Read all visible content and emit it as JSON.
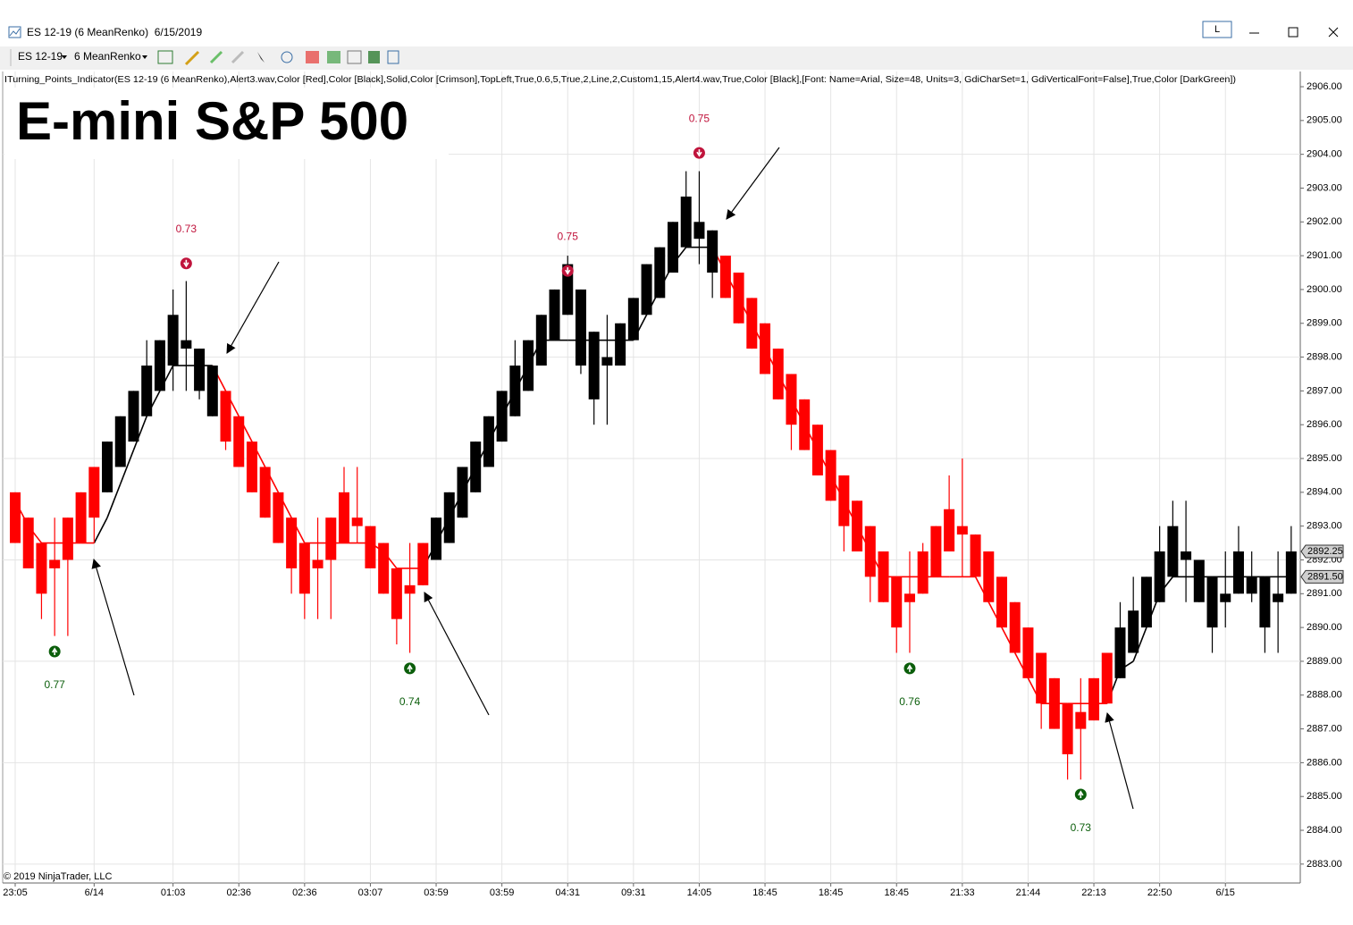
{
  "window": {
    "title": "ES 12-19 (6 MeanRenko)  6/15/2019",
    "button": "L"
  },
  "toolbar": {
    "instrument": "ES 12-19",
    "bar_type": "6 MeanRenko"
  },
  "indicator_text": "ITurning_Points_Indicator(ES 12-19 (6 MeanRenko),Alert3.wav,Color [Red],Color [Black],Solid,Color [Crimson],TopLeft,True,0.6,5,True,2,Line,2,Custom1,15,Alert4.wav,True,Color [Black],[Font: Name=Arial, Size=48, Units=3, GdiCharSet=1, GdiVerticalFont=False],True,Color [DarkGreen])",
  "copyright": "© 2019 NinjaTrader, LLC",
  "chart_data": {
    "type": "candlestick",
    "title": "E-mini S&P 500",
    "categories": [
      "23:05",
      null,
      null,
      null,
      null,
      null,
      "6/14",
      null,
      null,
      null,
      null,
      null,
      "01:03",
      null,
      null,
      null,
      null,
      "02:36",
      null,
      null,
      null,
      null,
      "02:36",
      null,
      null,
      null,
      null,
      "03:07",
      null,
      null,
      null,
      null,
      "03:59",
      null,
      null,
      null,
      null,
      "03:59",
      null,
      null,
      null,
      null,
      "04:31",
      null,
      null,
      null,
      null,
      "09:31",
      null,
      null,
      null,
      null,
      "14:05",
      null,
      null,
      null,
      null,
      "18:45",
      null,
      null,
      null,
      null,
      "18:45",
      null,
      null,
      null,
      null,
      "18:45",
      null,
      null,
      null,
      null,
      "21:33",
      null,
      null,
      null,
      null,
      "21:44",
      null,
      null,
      null,
      null,
      "22:13",
      null,
      null,
      null,
      null,
      "22:50",
      null,
      null,
      null,
      null,
      "6/15",
      null,
      null,
      null,
      null,
      null
    ],
    "open": [
      2894,
      2893.25,
      2892.5,
      2892,
      2892,
      2892.5,
      2893.25,
      2894,
      2894.75,
      2895.5,
      2896.25,
      2897,
      2897.75,
      2898.5,
      2898.25,
      2897.75,
      2897,
      2896.25,
      2895.5,
      2894.75,
      2894,
      2893.25,
      2892.5,
      2892,
      2892,
      2892.5,
      2893.25,
      2893,
      2892.5,
      2891.75,
      2891.25,
      2891.25,
      2892,
      2892.5,
      2893.25,
      2894,
      2894.75,
      2895.5,
      2896.25,
      2897,
      2897.75,
      2898.5,
      2899.25,
      2900,
      2898.75,
      2898,
      2897.75,
      2898.5,
      2899.25,
      2899.75,
      2900.5,
      2901.25,
      2902,
      2901.75,
      2901,
      2900.5,
      2899.75,
      2899,
      2898.25,
      2897.5,
      2896.75,
      2896,
      2895.25,
      2894.5,
      2893.75,
      2893,
      2892.25,
      2891.5,
      2891,
      2891,
      2891.5,
      2892.25,
      2893,
      2892.75,
      2892.25,
      2891.5,
      2890.75,
      2890,
      2889.25,
      2888.5,
      2887.75,
      2887.5,
      2887.25,
      2887.75,
      2888.5,
      2889.25,
      2890,
      2890.75,
      2891.5,
      2892.25,
      2892,
      2891.5,
      2891,
      2891,
      2891.5,
      2891.5,
      2891,
      2891
    ],
    "high": [
      2894,
      2893.25,
      2892.5,
      2893.25,
      2893.25,
      2894,
      2894.75,
      2895.5,
      2896.25,
      2897,
      2898.5,
      2898.5,
      2900,
      2900.25,
      2898.25,
      2897.75,
      2897,
      2896.25,
      2895.5,
      2894.75,
      2894,
      2893.25,
      2892.5,
      2893.25,
      2893.25,
      2894.75,
      2894.75,
      2893,
      2892.5,
      2891.75,
      2892.5,
      2892.5,
      2893.25,
      2894,
      2894.75,
      2895.5,
      2896.25,
      2897,
      2898.5,
      2898.5,
      2899.25,
      2900,
      2901,
      2900,
      2898.75,
      2899.25,
      2899,
      2899.75,
      2900.75,
      2901.25,
      2902,
      2903.5,
      2903.5,
      2901.75,
      2901,
      2900.5,
      2899.75,
      2899,
      2898.25,
      2897.5,
      2896.75,
      2896,
      2895.25,
      2894.5,
      2893.75,
      2893,
      2892.25,
      2891.5,
      2892.25,
      2892.5,
      2893,
      2894.5,
      2895,
      2892.75,
      2892.25,
      2891.5,
      2890.75,
      2890,
      2889.25,
      2888.5,
      2887.75,
      2888.5,
      2888.5,
      2889.25,
      2890.75,
      2891.5,
      2891.5,
      2893,
      2893.75,
      2893.75,
      2892,
      2891.5,
      2892.25,
      2893,
      2892.25,
      2891.5,
      2892.25,
      2893
    ],
    "low": [
      2892.5,
      2891.75,
      2890.25,
      2889.75,
      2889.75,
      2892.5,
      2892.5,
      2894,
      2894.75,
      2895.5,
      2896.25,
      2897,
      2897,
      2897,
      2896.75,
      2896.25,
      2895.25,
      2894.75,
      2894,
      2893.25,
      2892.5,
      2891,
      2890.25,
      2890.25,
      2890.25,
      2892.5,
      2892.5,
      2891.75,
      2891,
      2889.5,
      2889.25,
      2891.25,
      2892,
      2892.5,
      2893.25,
      2894,
      2894.75,
      2895.5,
      2896.25,
      2897,
      2897.75,
      2898.5,
      2899.25,
      2897.5,
      2896,
      2896,
      2897.75,
      2898.5,
      2899.25,
      2899.75,
      2900.5,
      2901.25,
      2900.75,
      2899.75,
      2899.75,
      2899,
      2898.25,
      2897.5,
      2896.75,
      2895.25,
      2895.25,
      2894.5,
      2893.75,
      2892.25,
      2892.25,
      2890.75,
      2890.75,
      2889.25,
      2889.25,
      2891,
      2891.5,
      2892.25,
      2891.5,
      2891.5,
      2890.75,
      2890,
      2889.25,
      2888.5,
      2887,
      2887,
      2885.5,
      2885.5,
      2887.25,
      2887.75,
      2888.5,
      2889.25,
      2890,
      2890.75,
      2891.5,
      2890.75,
      2890.75,
      2889.25,
      2890,
      2891,
      2890.75,
      2889.25,
      2889.25,
      2891
    ],
    "close": [
      2892.5,
      2891.75,
      2891,
      2891.75,
      2893.25,
      2894,
      2894.75,
      2895.5,
      2896.25,
      2897,
      2897.75,
      2898.5,
      2899.25,
      2898.25,
      2897,
      2896.25,
      2895.5,
      2894.75,
      2894,
      2893.25,
      2892.5,
      2891.75,
      2891,
      2891.75,
      2893.25,
      2894,
      2893,
      2891.75,
      2891,
      2890.25,
      2891,
      2892.5,
      2893.25,
      2894,
      2894.75,
      2895.5,
      2896.25,
      2897,
      2897.75,
      2898.5,
      2899.25,
      2900,
      2900.75,
      2897.75,
      2896.75,
      2897.75,
      2899,
      2899.75,
      2900.75,
      2901.25,
      2902,
      2902.75,
      2901.5,
      2900.5,
      2899.75,
      2899,
      2898.25,
      2897.5,
      2896.75,
      2896,
      2895.25,
      2894.5,
      2893.75,
      2893,
      2892.25,
      2891.5,
      2890.75,
      2890,
      2890.75,
      2892.25,
      2893,
      2893.5,
      2892.75,
      2891.5,
      2890.75,
      2890,
      2889.25,
      2888.5,
      2887.75,
      2887,
      2886.25,
      2887,
      2888.5,
      2889.25,
      2890,
      2890.5,
      2891.5,
      2892.25,
      2893,
      2892,
      2890.75,
      2890,
      2890.75,
      2892.25,
      2891,
      2890,
      2890.75,
      2892.25
    ],
    "bar_colors": [
      "#ff0000",
      "#ff0000",
      "#ff0000",
      "#ff0000",
      "#ff0000",
      "#ff0000",
      "#ff0000",
      "#000000",
      "#000000",
      "#000000",
      "#000000",
      "#000000",
      "#000000",
      "#000000",
      "#000000",
      "#000000",
      "#ff0000",
      "#ff0000",
      "#ff0000",
      "#ff0000",
      "#ff0000",
      "#ff0000",
      "#ff0000",
      "#ff0000",
      "#ff0000",
      "#ff0000",
      "#ff0000",
      "#ff0000",
      "#ff0000",
      "#ff0000",
      "#ff0000",
      "#ff0000",
      "#000000",
      "#000000",
      "#000000",
      "#000000",
      "#000000",
      "#000000",
      "#000000",
      "#000000",
      "#000000",
      "#000000",
      "#000000",
      "#000000",
      "#000000",
      "#000000",
      "#000000",
      "#000000",
      "#000000",
      "#000000",
      "#000000",
      "#000000",
      "#000000",
      "#000000",
      "#ff0000",
      "#ff0000",
      "#ff0000",
      "#ff0000",
      "#ff0000",
      "#ff0000",
      "#ff0000",
      "#ff0000",
      "#ff0000",
      "#ff0000",
      "#ff0000",
      "#ff0000",
      "#ff0000",
      "#ff0000",
      "#ff0000",
      "#ff0000",
      "#ff0000",
      "#ff0000",
      "#ff0000",
      "#ff0000",
      "#ff0000",
      "#ff0000",
      "#ff0000",
      "#ff0000",
      "#ff0000",
      "#ff0000",
      "#ff0000",
      "#ff0000",
      "#ff0000",
      "#ff0000",
      "#000000",
      "#000000",
      "#000000",
      "#000000",
      "#000000",
      "#000000",
      "#000000",
      "#000000",
      "#000000",
      "#000000",
      "#000000",
      "#000000",
      "#000000",
      "#000000"
    ],
    "trail": [
      2893.75,
      2893,
      2892.5,
      2892.5,
      2892.5,
      2892.5,
      2892.5,
      2893.25,
      2894.25,
      2895.25,
      2896.25,
      2897,
      2897.75,
      2897.75,
      2897.75,
      2897.75,
      2897,
      2896.25,
      2895.5,
      2894.75,
      2894,
      2893.25,
      2892.5,
      2892.5,
      2892.5,
      2892.5,
      2892.5,
      2892.5,
      2892.25,
      2891.75,
      2891.75,
      2891.75,
      2892.5,
      2893.25,
      2894,
      2894.75,
      2895.5,
      2896.25,
      2897,
      2897.75,
      2898.5,
      2898.5,
      2898.5,
      2898.5,
      2898.5,
      2898.5,
      2898.5,
      2898.5,
      2899.25,
      2900,
      2900.75,
      2901.25,
      2901.25,
      2901.25,
      2900.5,
      2899.75,
      2899,
      2898.25,
      2897.5,
      2896.75,
      2896,
      2895.25,
      2894.5,
      2893.75,
      2893,
      2892.25,
      2891.5,
      2891.5,
      2891.5,
      2891.5,
      2891.5,
      2891.5,
      2891.5,
      2891.5,
      2890.75,
      2890,
      2889.25,
      2888.5,
      2887.75,
      2887.75,
      2887.75,
      2887.75,
      2887.75,
      2887.75,
      2888.75,
      2889,
      2890,
      2891,
      2891.5,
      2891.5,
      2891.5,
      2891.5,
      2891.5,
      2891.5,
      2891.5,
      2891.5,
      2891.5,
      2891.5
    ],
    "sell_signals": {
      "color": "#c0143c",
      "points": [
        {
          "bar": 13,
          "price": 2900.77,
          "value": 0.73
        },
        {
          "bar": 42,
          "price": 2900.55,
          "value": 0.75
        },
        {
          "bar": 52,
          "price": 2904.04,
          "value": 0.75
        }
      ]
    },
    "buy_signals": {
      "color": "#0b5e0b",
      "points": [
        {
          "bar": 3,
          "price": 2889.29,
          "value": 0.77
        },
        {
          "bar": 30,
          "price": 2888.79,
          "value": 0.74
        },
        {
          "bar": 68,
          "price": 2888.79,
          "value": 0.76
        },
        {
          "bar": 81,
          "price": 2885.06,
          "value": 0.73
        }
      ]
    },
    "price_markers": [
      2892.25,
      {
        "value": 2891.5,
        "label": "2891.50"
      }
    ],
    "ylim": [
      2882.52,
      2906.45
    ],
    "yticks": [
      {
        "value": 2883,
        "label": "2883.00"
      },
      {
        "value": 2884,
        "label": "2884.00"
      },
      {
        "value": 2885,
        "label": "2885.00"
      },
      {
        "value": 2886,
        "label": "2886.00"
      },
      {
        "value": 2887,
        "label": "2887.00"
      },
      {
        "value": 2888,
        "label": "2888.00"
      },
      {
        "value": 2889,
        "label": "2889.00"
      },
      {
        "value": 2890,
        "label": "2890.00"
      },
      {
        "value": 2891,
        "label": "2891.00"
      },
      {
        "value": 2892,
        "label": "2892.00"
      },
      {
        "value": 2893,
        "label": "2893.00"
      },
      {
        "value": 2894,
        "label": "2894.00"
      },
      {
        "value": 2895,
        "label": "2895.00"
      },
      {
        "value": 2896,
        "label": "2896.00"
      },
      {
        "value": 2897,
        "label": "2897.00"
      },
      {
        "value": 2898,
        "label": "2898.00"
      },
      {
        "value": 2899,
        "label": "2899.00"
      },
      {
        "value": 2900,
        "label": "2900.00"
      },
      {
        "value": 2901,
        "label": "2901.00"
      },
      {
        "value": 2902,
        "label": "2902.00"
      },
      {
        "value": 2903,
        "label": "2903.00"
      },
      {
        "value": 2904,
        "label": "2904.00"
      },
      {
        "value": 2905,
        "label": "2905.00"
      },
      {
        "value": 2906,
        "label": "2906.00"
      }
    ],
    "grid_y": [
      2883,
      2886,
      2889,
      2892,
      2895,
      2898,
      2901,
      2904
    ],
    "grid": true
  }
}
